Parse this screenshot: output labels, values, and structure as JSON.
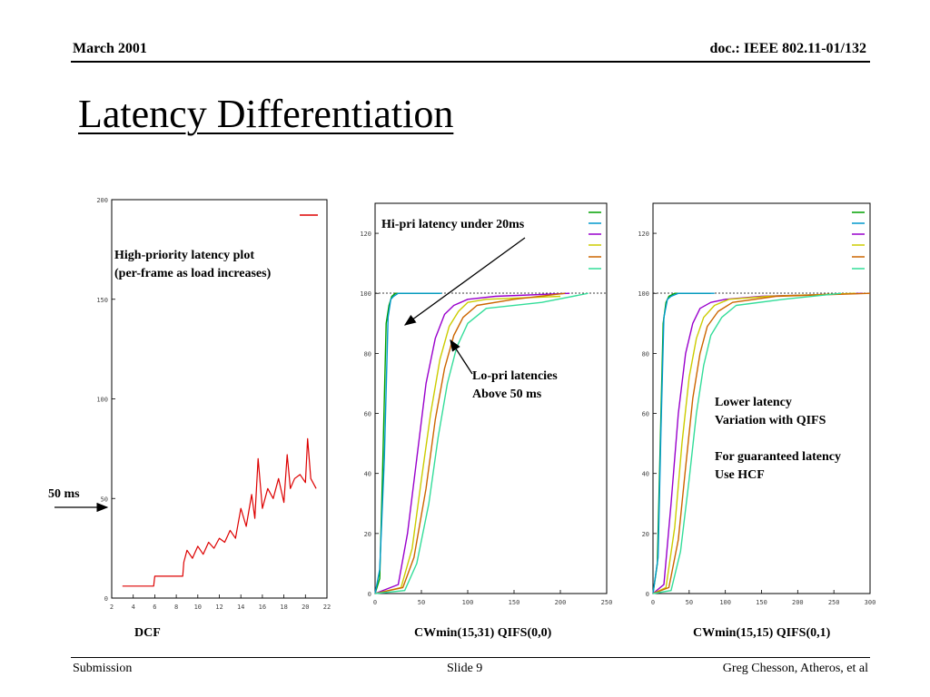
{
  "header": {
    "date": "March  2001",
    "doc": "doc.: IEEE 802.11-01/132"
  },
  "slide": {
    "title": "Latency Differentiation"
  },
  "footer": {
    "left": "Submission",
    "center": "Slide 9",
    "right": "Greg Chesson, Atheros, et al"
  },
  "annotations": {
    "hi_plot_1": "High-priority latency plot",
    "hi_plot_2": "(per-frame as load increases)",
    "hi_pri": "Hi-pri latency under 20ms",
    "lo_pri_1": "Lo-pri latencies",
    "lo_pri_2": "Above 50 ms",
    "lower_1": "Lower latency",
    "lower_2": "Variation with QIFS",
    "hcf_1": "For guaranteed latency",
    "hcf_2": "Use HCF",
    "ms50": "50 ms"
  },
  "captions": {
    "dcf": "DCF",
    "cw31": "CWmin(15,31) QIFS(0,0)",
    "cw15": "CWmin(15,15) QIFS(0,1)"
  },
  "colors": {
    "high1": "#00a000",
    "high2": "#0099cc",
    "low1": "#9900cc",
    "low2": "#cccc00",
    "low3": "#cc6600",
    "low4": "#33dd99",
    "dcf_trace": "#dd0000"
  },
  "chart_data": [
    {
      "type": "line",
      "title": "",
      "xlabel": "",
      "ylabel": "",
      "x_ticks": [
        2,
        4,
        6,
        8,
        10,
        12,
        14,
        16,
        18,
        20,
        22
      ],
      "y_ticks": [
        0,
        50,
        100,
        150,
        200
      ],
      "xlim": [
        2,
        22
      ],
      "ylim": [
        0,
        200
      ],
      "legend_position": "top-right",
      "series": [
        {
          "x": [
            3.0,
            5.0,
            5.9,
            6.0,
            8.6,
            8.7,
            9.0,
            9.5,
            10.0,
            10.5,
            11.0,
            11.5,
            12.0,
            12.5,
            13.0,
            13.5,
            14.0,
            14.5,
            15.0,
            15.3,
            15.6,
            16.0,
            16.5,
            17.0,
            17.5,
            18.0,
            18.3,
            18.6,
            19.0,
            19.5,
            20.0,
            20.2,
            20.5,
            21.0
          ],
          "y": [
            6,
            6,
            6,
            11,
            11,
            18,
            24,
            20,
            26,
            22,
            28,
            25,
            30,
            28,
            34,
            30,
            45,
            36,
            52,
            40,
            70,
            45,
            55,
            50,
            60,
            48,
            72,
            55,
            60,
            62,
            58,
            80,
            60,
            55
          ]
        }
      ]
    },
    {
      "type": "line",
      "title": "",
      "xlabel": "",
      "ylabel": "",
      "x_ticks": [
        0,
        50,
        100,
        150,
        200,
        250
      ],
      "y_ticks": [
        0,
        20,
        40,
        60,
        80,
        100,
        120
      ],
      "xlim": [
        0,
        250
      ],
      "ylim": [
        0,
        130
      ],
      "legend_position": "top-right",
      "series": [
        {
          "x": [
            0,
            5,
            8,
            12,
            15,
            18,
            22,
            28,
            40,
            70
          ],
          "y": [
            0,
            5,
            40,
            90,
            96,
            99,
            100,
            100,
            100,
            100
          ]
        },
        {
          "x": [
            0,
            5,
            10,
            14,
            17,
            20,
            25,
            35,
            50,
            72
          ],
          "y": [
            0,
            8,
            45,
            92,
            98,
            99,
            100,
            100,
            100,
            100
          ]
        },
        {
          "x": [
            0,
            25,
            35,
            45,
            55,
            65,
            75,
            85,
            100,
            130,
            210
          ],
          "y": [
            0,
            3,
            20,
            45,
            70,
            85,
            93,
            96,
            98,
            99,
            100
          ]
        },
        {
          "x": [
            0,
            28,
            40,
            50,
            60,
            70,
            80,
            90,
            100,
            120,
            200
          ],
          "y": [
            0,
            2,
            15,
            38,
            60,
            78,
            89,
            94,
            97,
            98,
            99
          ]
        },
        {
          "x": [
            0,
            30,
            42,
            55,
            65,
            75,
            85,
            95,
            110,
            150,
            205
          ],
          "y": [
            0,
            2,
            12,
            35,
            58,
            75,
            86,
            92,
            96,
            98,
            100
          ]
        },
        {
          "x": [
            0,
            32,
            45,
            58,
            68,
            78,
            88,
            100,
            120,
            180,
            230
          ],
          "y": [
            0,
            1,
            10,
            30,
            52,
            70,
            82,
            90,
            95,
            97,
            100
          ]
        }
      ]
    },
    {
      "type": "line",
      "title": "",
      "xlabel": "",
      "ylabel": "",
      "x_ticks": [
        0,
        50,
        100,
        150,
        200,
        250,
        300
      ],
      "y_ticks": [
        0,
        20,
        40,
        60,
        80,
        100,
        120
      ],
      "xlim": [
        0,
        300
      ],
      "ylim": [
        0,
        130
      ],
      "legend_position": "top-right",
      "series": [
        {
          "x": [
            0,
            6,
            10,
            14,
            18,
            22,
            30,
            50,
            80
          ],
          "y": [
            0,
            10,
            50,
            90,
            97,
            99,
            100,
            100,
            100
          ]
        },
        {
          "x": [
            0,
            7,
            11,
            15,
            20,
            25,
            35,
            55,
            85
          ],
          "y": [
            0,
            12,
            55,
            92,
            98,
            99,
            100,
            100,
            100
          ]
        },
        {
          "x": [
            0,
            15,
            25,
            35,
            45,
            55,
            65,
            80,
            100,
            150,
            290
          ],
          "y": [
            0,
            3,
            30,
            60,
            80,
            90,
            95,
            97,
            98,
            99,
            100
          ]
        },
        {
          "x": [
            0,
            18,
            30,
            40,
            50,
            60,
            70,
            85,
            105,
            160,
            280
          ],
          "y": [
            0,
            2,
            22,
            50,
            72,
            85,
            92,
            96,
            98,
            99,
            100
          ]
        },
        {
          "x": [
            0,
            22,
            35,
            45,
            55,
            65,
            75,
            90,
            110,
            170,
            300
          ],
          "y": [
            0,
            2,
            18,
            42,
            65,
            80,
            89,
            94,
            97,
            99,
            100
          ]
        },
        {
          "x": [
            0,
            25,
            38,
            50,
            60,
            70,
            80,
            95,
            115,
            180,
            260
          ],
          "y": [
            0,
            1,
            14,
            38,
            60,
            76,
            86,
            92,
            96,
            98,
            100
          ]
        }
      ]
    }
  ]
}
